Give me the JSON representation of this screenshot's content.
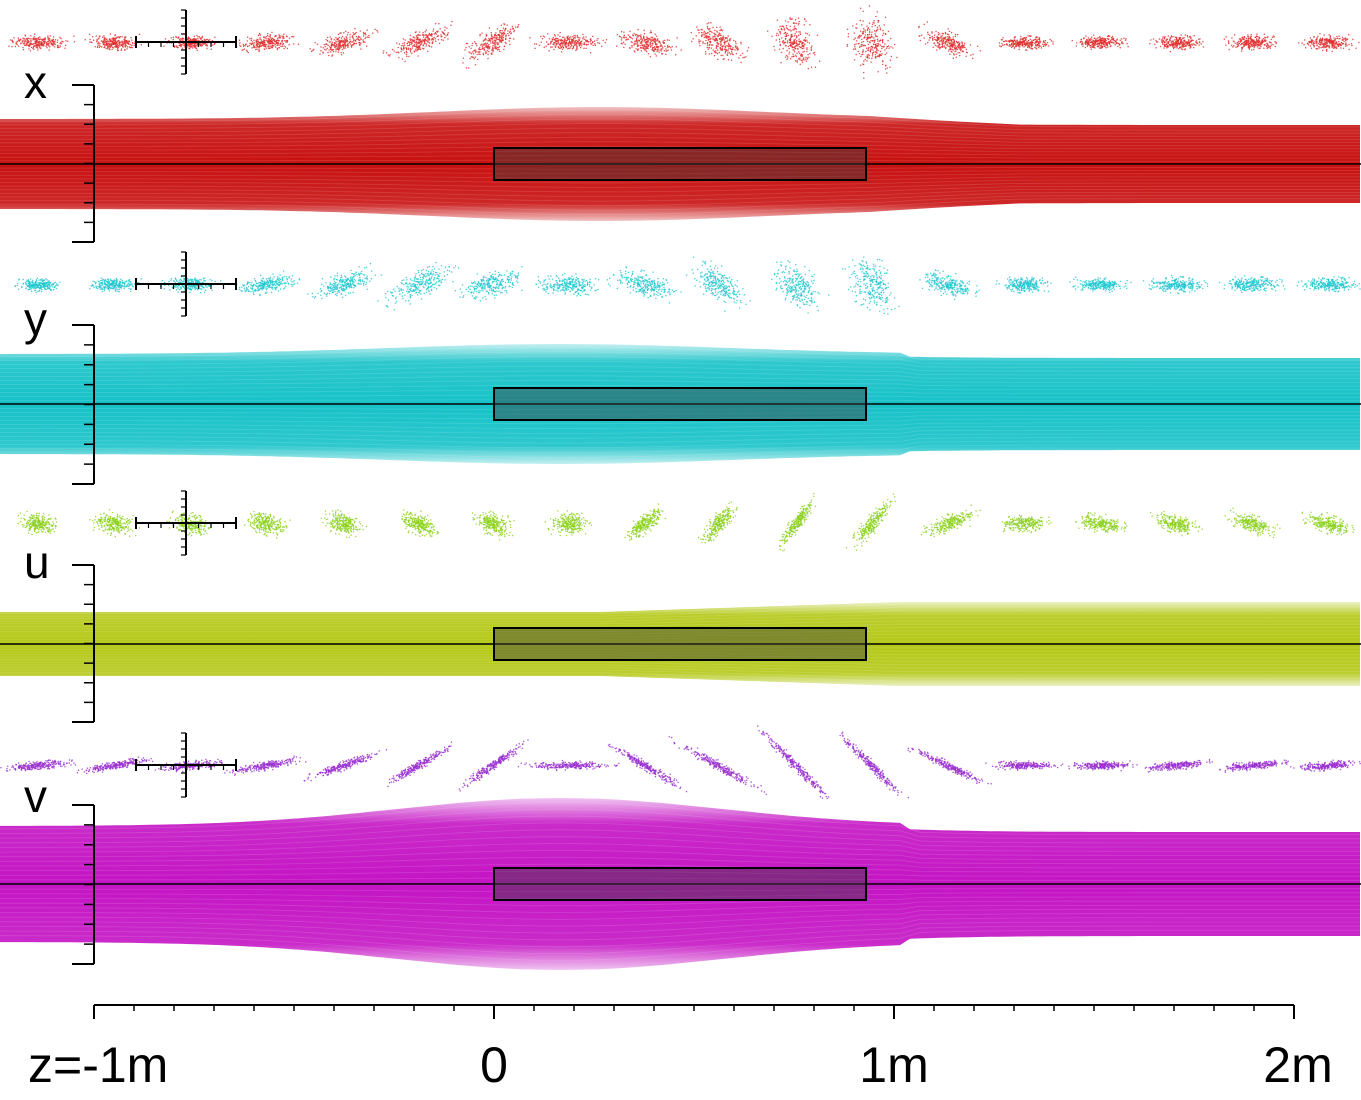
{
  "panels": [
    {
      "id": "x",
      "label": "x",
      "color": "#cc1111",
      "band_fill": "#c81010",
      "scatter_color": "#e03030",
      "ellipses": [
        {
          "rx": 28,
          "ry": 7,
          "rot": 0
        },
        {
          "rx": 24,
          "ry": 7,
          "rot": 0
        },
        {
          "rx": 22,
          "ry": 7,
          "rot": 0
        },
        {
          "rx": 26,
          "ry": 8,
          "rot": -5
        },
        {
          "rx": 28,
          "ry": 9,
          "rot": -15
        },
        {
          "rx": 30,
          "ry": 10,
          "rot": -25
        },
        {
          "rx": 30,
          "ry": 12,
          "rot": -30
        },
        {
          "rx": 30,
          "ry": 8,
          "rot": 0
        },
        {
          "rx": 28,
          "ry": 11,
          "rot": 15
        },
        {
          "rx": 26,
          "ry": 14,
          "rot": 30
        },
        {
          "rx": 26,
          "ry": 18,
          "rot": 60
        },
        {
          "rx": 28,
          "ry": 20,
          "rot": 70
        },
        {
          "rx": 26,
          "ry": 10,
          "rot": 20
        },
        {
          "rx": 24,
          "ry": 6,
          "rot": 0
        },
        {
          "rx": 24,
          "ry": 6,
          "rot": 0
        },
        {
          "rx": 24,
          "ry": 7,
          "rot": 0
        },
        {
          "rx": 24,
          "ry": 7,
          "rot": 0
        },
        {
          "rx": 24,
          "ry": 7,
          "rot": 0
        }
      ]
    },
    {
      "id": "y",
      "label": "y",
      "color": "#11bbcc",
      "band_fill": "#16c2c8",
      "scatter_color": "#22c8d0",
      "ellipses": [
        {
          "rx": 20,
          "ry": 6,
          "rot": 0
        },
        {
          "rx": 24,
          "ry": 6,
          "rot": 0
        },
        {
          "rx": 24,
          "ry": 7,
          "rot": 0
        },
        {
          "rx": 28,
          "ry": 8,
          "rot": -10
        },
        {
          "rx": 30,
          "ry": 10,
          "rot": -20
        },
        {
          "rx": 34,
          "ry": 12,
          "rot": -25
        },
        {
          "rx": 30,
          "ry": 12,
          "rot": -15
        },
        {
          "rx": 30,
          "ry": 10,
          "rot": 0
        },
        {
          "rx": 30,
          "ry": 12,
          "rot": 15
        },
        {
          "rx": 28,
          "ry": 14,
          "rot": 35
        },
        {
          "rx": 26,
          "ry": 18,
          "rot": 55
        },
        {
          "rx": 28,
          "ry": 20,
          "rot": 65
        },
        {
          "rx": 26,
          "ry": 10,
          "rot": 15
        },
        {
          "rx": 22,
          "ry": 7,
          "rot": 0
        },
        {
          "rx": 24,
          "ry": 6,
          "rot": 0
        },
        {
          "rx": 26,
          "ry": 7,
          "rot": 0
        },
        {
          "rx": 28,
          "ry": 7,
          "rot": 0
        },
        {
          "rx": 28,
          "ry": 7,
          "rot": 0
        }
      ]
    },
    {
      "id": "u",
      "label": "u",
      "color": "#99cc11",
      "band_fill": "#b4c816",
      "scatter_color": "#8cd11e",
      "ellipses": [
        {
          "rx": 18,
          "ry": 9,
          "rot": 10
        },
        {
          "rx": 20,
          "ry": 10,
          "rot": 10
        },
        {
          "rx": 20,
          "ry": 10,
          "rot": 10
        },
        {
          "rx": 20,
          "ry": 10,
          "rot": 15
        },
        {
          "rx": 18,
          "ry": 10,
          "rot": 20
        },
        {
          "rx": 18,
          "ry": 10,
          "rot": 25
        },
        {
          "rx": 18,
          "ry": 10,
          "rot": 20
        },
        {
          "rx": 18,
          "ry": 10,
          "rot": 0
        },
        {
          "rx": 20,
          "ry": 8,
          "rot": -40
        },
        {
          "rx": 24,
          "ry": 8,
          "rot": -50
        },
        {
          "rx": 26,
          "ry": 6,
          "rot": -55
        },
        {
          "rx": 28,
          "ry": 7,
          "rot": -50
        },
        {
          "rx": 26,
          "ry": 8,
          "rot": -20
        },
        {
          "rx": 22,
          "ry": 8,
          "rot": 0
        },
        {
          "rx": 22,
          "ry": 8,
          "rot": 10
        },
        {
          "rx": 22,
          "ry": 8,
          "rot": 15
        },
        {
          "rx": 22,
          "ry": 8,
          "rot": 15
        },
        {
          "rx": 22,
          "ry": 8,
          "rot": 15
        }
      ]
    },
    {
      "id": "v",
      "label": "v",
      "color": "#aa33cc",
      "band_fill": "#c414c4",
      "scatter_color": "#9a30d0",
      "ellipses": [
        {
          "rx": 32,
          "ry": 4,
          "rot": -5
        },
        {
          "rx": 34,
          "ry": 4,
          "rot": -10
        },
        {
          "rx": 32,
          "ry": 4,
          "rot": -5
        },
        {
          "rx": 34,
          "ry": 4,
          "rot": -10
        },
        {
          "rx": 36,
          "ry": 4,
          "rot": -20
        },
        {
          "rx": 36,
          "ry": 4,
          "rot": -30
        },
        {
          "rx": 38,
          "ry": 4,
          "rot": -35
        },
        {
          "rx": 40,
          "ry": 4,
          "rot": 0
        },
        {
          "rx": 38,
          "ry": 4,
          "rot": 30
        },
        {
          "rx": 44,
          "ry": 4,
          "rot": 30
        },
        {
          "rx": 44,
          "ry": 4,
          "rot": 45
        },
        {
          "rx": 44,
          "ry": 4,
          "rot": 45
        },
        {
          "rx": 36,
          "ry": 4,
          "rot": 25
        },
        {
          "rx": 30,
          "ry": 4,
          "rot": 0
        },
        {
          "rx": 28,
          "ry": 4,
          "rot": 0
        },
        {
          "rx": 30,
          "ry": 4,
          "rot": -5
        },
        {
          "rx": 30,
          "ry": 4,
          "rot": -5
        },
        {
          "rx": 30,
          "ry": 4,
          "rot": -5
        }
      ]
    }
  ],
  "element_box_fill": "rgba(60,60,60,0.45)",
  "z_axis": {
    "tick_labels": [
      {
        "z": -1,
        "text": "z=-1m"
      },
      {
        "z": 0,
        "text": "0"
      },
      {
        "z": 1,
        "text": "1m"
      },
      {
        "z": 2,
        "text": "2m"
      }
    ],
    "range": [
      -1,
      2
    ],
    "element_start": 0,
    "element_end": 0.93
  }
}
